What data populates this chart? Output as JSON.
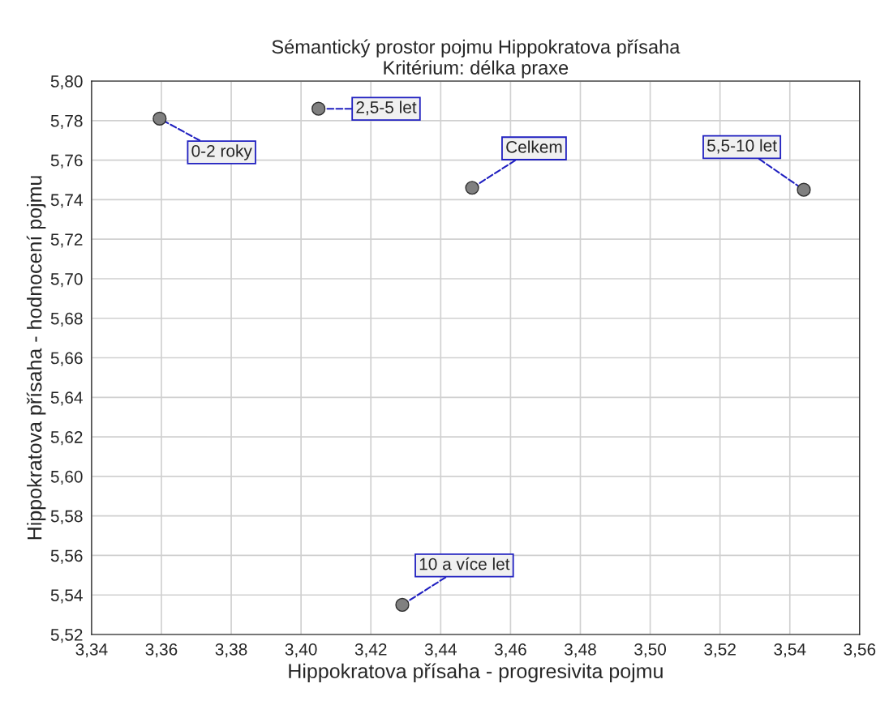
{
  "chart_data": {
    "type": "scatter",
    "title": "Sémantický prostor pojmu Hippokratova přísaha\nKritérium: délka praxe",
    "xlabel": "Hippokratova přísaha - progresivita pojmu",
    "ylabel": "Hippokratova přísaha - hodnocení pojmu",
    "x": [
      3.3595,
      3.405,
      3.449,
      3.544,
      3.429
    ],
    "values": [
      5.781,
      5.786,
      5.746,
      5.745,
      5.535
    ],
    "color": "#808080",
    "marker": "circle",
    "grid": true,
    "legend": false,
    "xlim": [
      3.34,
      3.56
    ],
    "ylim": [
      5.52,
      5.8
    ],
    "xticks": [
      {
        "value": 3.34,
        "label": "3,34"
      },
      {
        "value": 3.36,
        "label": "3,36"
      },
      {
        "value": 3.38,
        "label": "3,38"
      },
      {
        "value": 3.4,
        "label": "3,40"
      },
      {
        "value": 3.42,
        "label": "3,42"
      },
      {
        "value": 3.44,
        "label": "3,44"
      },
      {
        "value": 3.46,
        "label": "3,46"
      },
      {
        "value": 3.48,
        "label": "3,48"
      },
      {
        "value": 3.5,
        "label": "3,50"
      },
      {
        "value": 3.52,
        "label": "3,52"
      },
      {
        "value": 3.54,
        "label": "3,54"
      },
      {
        "value": 3.56,
        "label": "3,56"
      }
    ],
    "yticks": [
      {
        "value": 5.52,
        "label": "5,52"
      },
      {
        "value": 5.54,
        "label": "5,54"
      },
      {
        "value": 5.56,
        "label": "5,56"
      },
      {
        "value": 5.58,
        "label": "5,58"
      },
      {
        "value": 5.6,
        "label": "5,60"
      },
      {
        "value": 5.62,
        "label": "5,62"
      },
      {
        "value": 5.64,
        "label": "5,64"
      },
      {
        "value": 5.66,
        "label": "5,66"
      },
      {
        "value": 5.68,
        "label": "5,68"
      },
      {
        "value": 5.7,
        "label": "5,70"
      },
      {
        "value": 5.72,
        "label": "5,72"
      },
      {
        "value": 5.74,
        "label": "5,74"
      },
      {
        "value": 5.76,
        "label": "5,76"
      },
      {
        "value": 5.78,
        "label": "5,78"
      },
      {
        "value": 5.8,
        "label": "5,80"
      }
    ],
    "annotations": [
      {
        "text": "0-2 roky",
        "x": 3.3595,
        "y": 5.781
      },
      {
        "text": "2,5-5 let",
        "x": 3.405,
        "y": 5.786
      },
      {
        "text": "Celkem",
        "x": 3.449,
        "y": 5.746
      },
      {
        "text": "5,5-10 let",
        "x": 3.544,
        "y": 5.745
      },
      {
        "text": "10 a více let",
        "x": 3.429,
        "y": 5.535
      }
    ]
  }
}
